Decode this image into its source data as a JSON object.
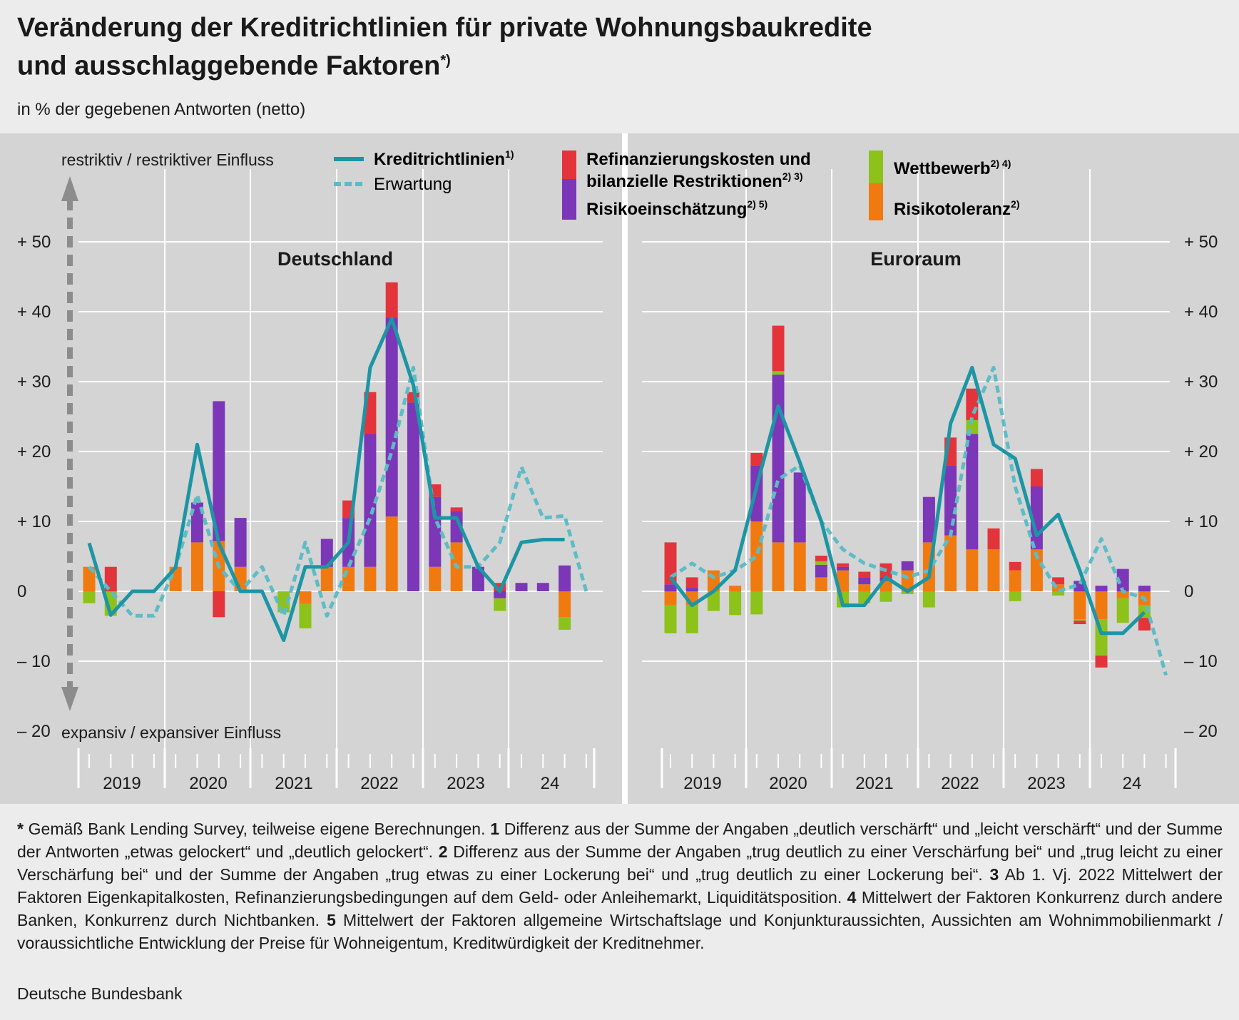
{
  "title_line1": "Veränderung der Kreditrichtlinien für private Wohnungsbaukredite",
  "title_line2": "und ausschlaggebende Faktoren",
  "title_sup": "*)",
  "subtitle": "in % der gegebenen Antworten (netto)",
  "source": "Deutsche Bundesbank",
  "footnotes": {
    "star": "Gemäß Bank Lending Survey, teilweise eigene Berechnungen.",
    "n1_label": "1",
    "n1": "Differenz aus der Summe der Angaben „deutlich verschärft“ und „leicht verschärft“ und der Summe der Antworten „etwas gelockert“ und „deutlich gelockert“.",
    "n2_label": "2",
    "n2": "Differenz aus der Summe der Angaben „trug deutlich zu einer Verschärfung bei“ und „trug leicht zu einer Verschärfung bei“ und der Summe der Angaben „trug etwas zu einer Lockerung bei“ und „trug deutlich zu einer Lockerung bei“.",
    "n3_label": "3",
    "n3": "Ab 1. Vj. 2022 Mittelwert der Faktoren Eigenkapitalkosten, Refinanzierungsbedingungen auf dem Geld- oder Anleihemarkt, Liquiditätsposition.",
    "n4_label": "4",
    "n4": "Mittelwert der Faktoren Konkurrenz durch andere Banken, Konkurrenz durch Nichtbanken.",
    "n5_label": "5",
    "n5": "Mittelwert der Faktoren allgemeine Wirtschaftslage und Konjunkturaussichten, Aussichten am Wohnimmobilienmarkt / voraussichtliche Entwicklung der Preise für Wohneigentum, Kreditwürdigkeit der Kreditnehmer."
  },
  "chart_data": {
    "type": "bar",
    "axis_top_label": "restriktiv / restriktiver Einfluss",
    "axis_bottom_label": "expansiv / expansiver Einfluss",
    "ylim": [
      -20,
      50
    ],
    "yticks": [
      "+ 50",
      "+ 40",
      "+ 30",
      "+ 20",
      "+ 10",
      "0",
      "– 10",
      "– 20"
    ],
    "ytick_values": [
      50,
      40,
      30,
      20,
      10,
      0,
      -10,
      -20
    ],
    "year_labels": [
      "2019",
      "2020",
      "2021",
      "2022",
      "2023",
      "24"
    ],
    "legend": {
      "line": "Kreditrichtlinien",
      "line_sup": "1)",
      "dashed": "Erwartung",
      "refi_line1": "Refinanzierungskosten und",
      "refi_line2": "bilanzielle Restriktionen",
      "refi_sup": "2) 3)",
      "risk": "Risikoeinschätzung",
      "risk_sup": "2) 5)",
      "wett": "Wettbewerb",
      "wett_sup": "2) 4)",
      "tol": "Risikotoleranz",
      "tol_sup": "2)"
    },
    "colors": {
      "refi": "#e3343c",
      "risk": "#7c36b8",
      "wett": "#8cc21a",
      "tol": "#f07a10",
      "line": "#1c95a4",
      "dashed": "#5dbcc6"
    },
    "panels": [
      {
        "name": "Deutschland",
        "quarters": [
          "2019 Q1",
          "2019 Q2",
          "2019 Q3",
          "2019 Q4",
          "2020 Q1",
          "2020 Q2",
          "2020 Q3",
          "2020 Q4",
          "2021 Q1",
          "2021 Q2",
          "2021 Q3",
          "2021 Q4",
          "2022 Q1",
          "2022 Q2",
          "2022 Q3",
          "2022 Q4",
          "2023 Q1",
          "2023 Q2",
          "2023 Q3",
          "2023 Q4",
          "2024 Q1",
          "2024 Q2",
          "2024 Q3"
        ],
        "refi": [
          0,
          3.5,
          0,
          0,
          0,
          0,
          -3.7,
          0,
          0,
          0,
          0,
          0,
          2.5,
          6,
          5,
          1.5,
          1.8,
          0.5,
          0,
          1.2,
          0,
          0,
          0
        ],
        "risk": [
          0,
          0,
          0,
          0,
          0,
          5.7,
          20,
          7,
          0,
          0,
          0,
          4,
          7,
          19,
          28.5,
          27,
          10,
          4.5,
          3.5,
          -1,
          1.2,
          1.2,
          3.7
        ],
        "wett": [
          -1.7,
          -3.5,
          0,
          0,
          0,
          0,
          0,
          0,
          0,
          -3,
          -3.5,
          0,
          0,
          0,
          0,
          0,
          0,
          0,
          0,
          -1.8,
          0,
          0,
          -1.8
        ],
        "tol": [
          3.5,
          0,
          0,
          0,
          3.5,
          7,
          7.2,
          3.5,
          0,
          0,
          -1.8,
          3.5,
          3.5,
          3.5,
          10.7,
          0,
          3.5,
          7,
          0,
          0,
          0,
          0,
          -3.7
        ],
        "kredit": [
          6.9,
          -3.4,
          0,
          0,
          3.4,
          21,
          6.9,
          0,
          0,
          -7,
          3.5,
          3.5,
          7,
          32,
          39,
          29.5,
          10.5,
          10.5,
          3.5,
          0,
          7,
          7.4,
          7.4
        ],
        "erwartung": [
          3.5,
          0,
          -3.5,
          -3.5,
          3.5,
          13.8,
          3.5,
          0,
          3.5,
          -3.5,
          7,
          -3.5,
          3.5,
          10.5,
          20,
          32,
          10.5,
          3.5,
          3.5,
          7,
          17.8,
          10.5,
          10.8,
          0
        ]
      },
      {
        "name": "Euroraum",
        "quarters": [
          "2019 Q1",
          "2019 Q2",
          "2019 Q3",
          "2019 Q4",
          "2020 Q1",
          "2020 Q2",
          "2020 Q3",
          "2020 Q4",
          "2021 Q1",
          "2021 Q2",
          "2021 Q3",
          "2021 Q4",
          "2022 Q1",
          "2022 Q2",
          "2022 Q3",
          "2022 Q4",
          "2023 Q1",
          "2023 Q2",
          "2023 Q3",
          "2023 Q4",
          "2024 Q1",
          "2024 Q2",
          "2024 Q3"
        ],
        "refi": [
          6,
          1.5,
          0,
          0,
          1.8,
          6.5,
          0,
          0.8,
          0.5,
          0.8,
          2,
          0,
          0,
          4,
          4.5,
          3,
          1.2,
          2.5,
          1,
          -0.5,
          -1.7,
          0,
          -1.8
        ],
        "risk": [
          1,
          0.5,
          0,
          0,
          8,
          24,
          10,
          1.8,
          0.5,
          1,
          0.5,
          1.3,
          6.5,
          10,
          16.5,
          0,
          0,
          9,
          0,
          1.5,
          0.8,
          3.2,
          0.8
        ],
        "wett": [
          -4,
          -4,
          -2.8,
          -3.4,
          -3.3,
          0.5,
          0,
          0.5,
          -2.3,
          -1.7,
          -1.5,
          -0.4,
          -2.3,
          0,
          2,
          0,
          -1.4,
          0,
          -0.6,
          -0.2,
          -5.2,
          -3.5,
          -1.8
        ],
        "tol": [
          -2,
          -2,
          3,
          0.8,
          10,
          7,
          7,
          2,
          3,
          1,
          1.5,
          3,
          7,
          8,
          6,
          6,
          3,
          6,
          1,
          -4,
          -4,
          -1,
          -2
        ],
        "kredit": [
          2,
          -2,
          0,
          3,
          15,
          26.5,
          18.5,
          10,
          -2,
          -2,
          2,
          0,
          2,
          24,
          32,
          21,
          19,
          8,
          11,
          3,
          -6,
          -6,
          -3
        ],
        "erwartung": [
          2,
          4,
          2,
          3,
          5,
          16,
          18,
          10,
          6,
          4,
          3,
          2,
          3,
          8,
          25,
          32,
          15,
          5,
          0,
          1,
          7.5,
          0,
          -1,
          -12
        ]
      }
    ]
  }
}
